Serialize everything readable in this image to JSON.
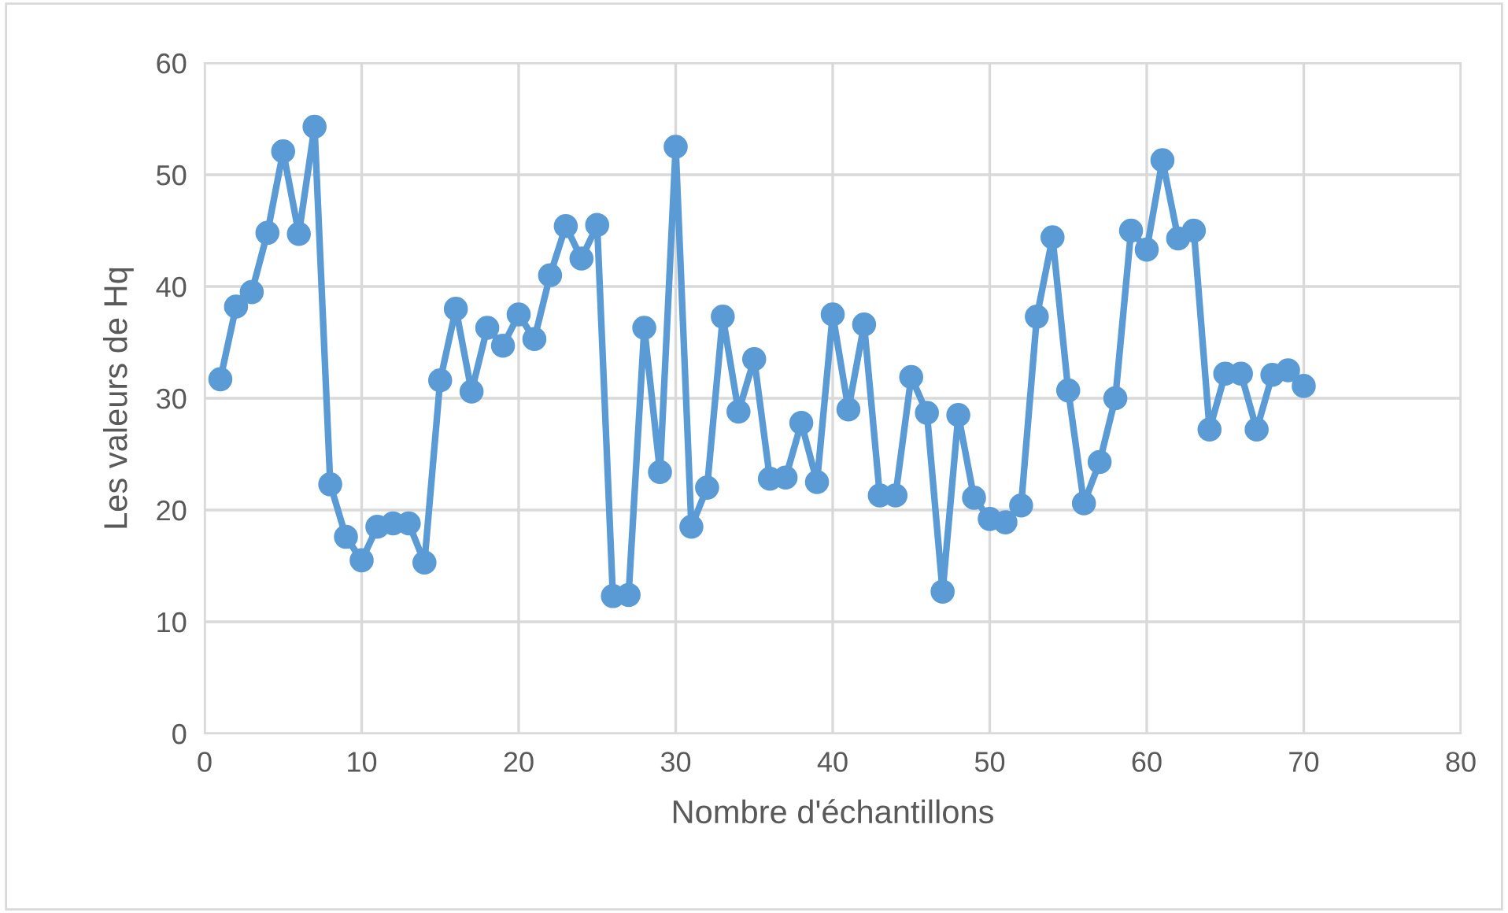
{
  "chart_data": {
    "type": "line",
    "xlabel": "Nombre d'échantillons",
    "ylabel": "Les valeurs de Hq",
    "x": [
      1,
      2,
      3,
      4,
      5,
      6,
      7,
      8,
      9,
      10,
      11,
      12,
      13,
      14,
      15,
      16,
      17,
      18,
      19,
      20,
      21,
      22,
      23,
      24,
      25,
      26,
      27,
      28,
      29,
      30,
      31,
      32,
      33,
      34,
      35,
      36,
      37,
      38,
      39,
      40,
      41,
      42,
      43,
      44,
      45,
      46,
      47,
      48,
      49,
      50,
      51,
      52,
      53,
      54,
      55,
      56,
      57,
      58,
      59,
      60,
      61,
      62,
      63,
      64,
      65,
      66,
      67,
      68,
      69,
      70
    ],
    "series": [
      {
        "color": "#5b9bd5",
        "values": [
          31.7,
          38.2,
          39.5,
          44.8,
          52.1,
          44.7,
          54.3,
          22.3,
          17.6,
          15.5,
          18.5,
          18.8,
          18.8,
          15.3,
          31.6,
          38.0,
          30.6,
          36.3,
          34.7,
          37.5,
          35.3,
          41.0,
          45.4,
          42.5,
          45.5,
          12.3,
          12.4,
          36.3,
          23.4,
          52.5,
          18.5,
          22.0,
          37.3,
          28.8,
          33.5,
          22.8,
          22.9,
          27.8,
          22.5,
          37.5,
          29.0,
          36.6,
          21.3,
          21.3,
          31.9,
          28.7,
          12.7,
          28.5,
          21.1,
          19.2,
          18.9,
          20.4,
          37.3,
          44.4,
          30.7,
          20.6,
          24.3,
          30.0,
          45.0,
          43.3,
          51.3,
          44.3,
          45.0,
          27.2,
          32.2,
          32.2,
          27.2,
          32.1,
          32.5,
          31.1
        ]
      }
    ],
    "xlim": [
      0,
      80
    ],
    "xticks": [
      0,
      10,
      20,
      30,
      40,
      50,
      60,
      70,
      80
    ],
    "ylim": [
      0,
      60
    ],
    "yticks": [
      0,
      10,
      20,
      30,
      40,
      50,
      60
    ],
    "grid": true,
    "marker": "circle",
    "line_style": "solid"
  }
}
